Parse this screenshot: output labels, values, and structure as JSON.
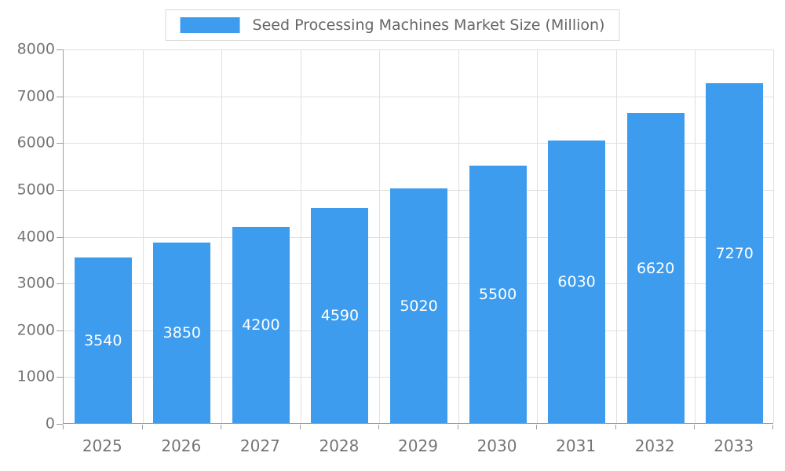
{
  "chart_data": {
    "type": "bar",
    "title": "Seed Processing Machines Market Size (Million)",
    "categories": [
      "2025",
      "2026",
      "2027",
      "2028",
      "2029",
      "2030",
      "2031",
      "2032",
      "2033"
    ],
    "values": [
      3540,
      3850,
      4200,
      4590,
      5020,
      5500,
      6030,
      6620,
      7270
    ],
    "xlabel": "",
    "ylabel": "",
    "ylim": [
      0,
      8000
    ],
    "y_tick_step": 1000,
    "grid": true,
    "legend_position": "top-center",
    "value_labels": "inside-center",
    "colors": {
      "bar": "#3d9cee",
      "bar_label": "#ffffff",
      "axis_text": "#757575",
      "axis_line": "#9e9e9e",
      "gridline": "#e0e0e0",
      "legend_border": "#d9d9d9",
      "legend_text": "#666666"
    }
  }
}
